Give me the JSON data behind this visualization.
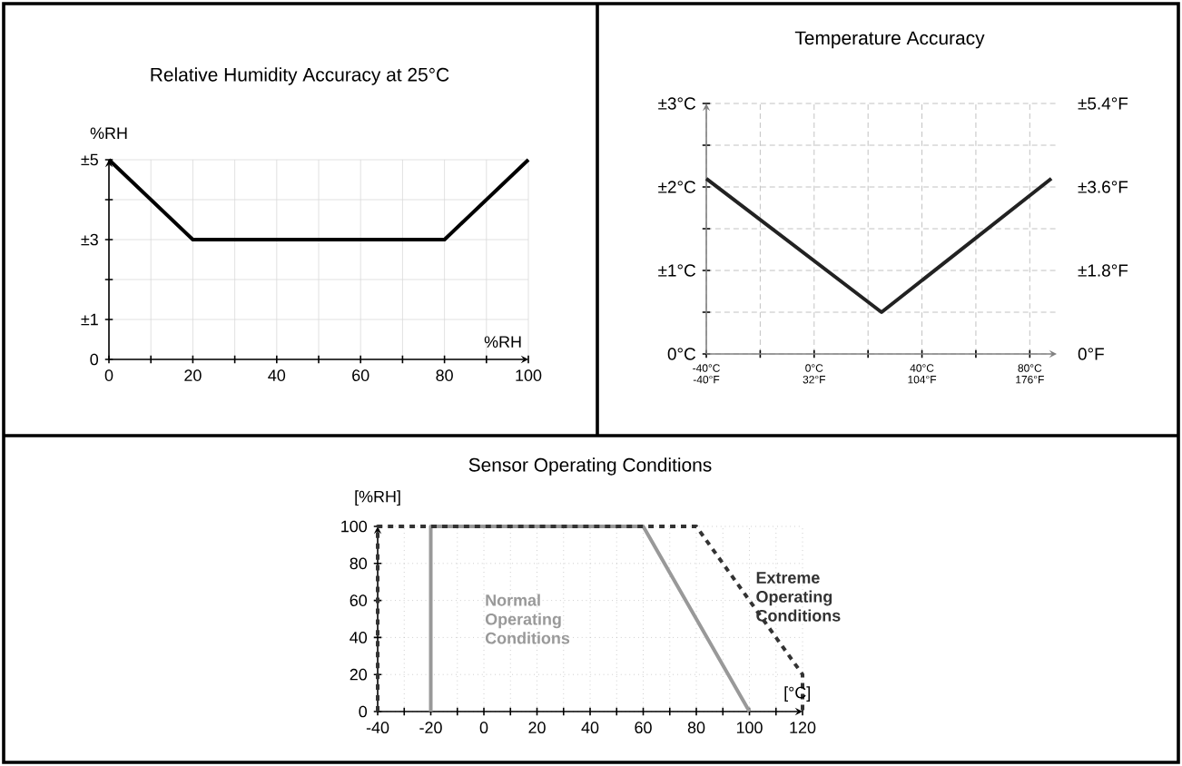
{
  "chart_data": [
    {
      "type": "line",
      "title": "Relative Humidity Accuracy at 25°C",
      "xlabel": "%RH",
      "ylabel": "%RH",
      "x": [
        0,
        20,
        80,
        100
      ],
      "series": [
        {
          "color": "#000000",
          "values": [
            5,
            3,
            3,
            5
          ]
        }
      ],
      "xlim": [
        0,
        100
      ],
      "ylim": [
        0,
        5
      ],
      "xticks": [
        0,
        {
          "value": 10,
          "label": null
        },
        20,
        {
          "value": 30,
          "label": null
        },
        40,
        {
          "value": 50,
          "label": null
        },
        60,
        {
          "value": 70,
          "label": null
        },
        80,
        {
          "value": 90,
          "label": null
        },
        100
      ],
      "yticks": [
        0,
        {
          "value": 1,
          "label": "±1"
        },
        {
          "value": 2,
          "label": null
        },
        {
          "value": 3,
          "label": "±3"
        },
        {
          "value": 4,
          "label": null
        },
        {
          "value": 5,
          "label": "±5"
        }
      ],
      "grid": true
    },
    {
      "type": "line",
      "title": "Temperature Accuracy",
      "x": [
        -40,
        25,
        88
      ],
      "series": [
        {
          "color": "#222222",
          "values": [
            2.1,
            0.5,
            2.1
          ]
        }
      ],
      "xlim": [
        -40,
        90
      ],
      "ylim": [
        0,
        3
      ],
      "xticks": [
        {
          "value": -40,
          "label": "-40°C"
        },
        {
          "value": -20,
          "label": null
        },
        {
          "value": 0,
          "label": "0°C"
        },
        {
          "value": 20,
          "label": null
        },
        {
          "value": 40,
          "label": "40°C"
        },
        {
          "value": 60,
          "label": null
        },
        {
          "value": 80,
          "label": "80°C"
        }
      ],
      "x2lim": [
        -40,
        194
      ],
      "x2ticks": [
        {
          "value": -40,
          "label": "-40°F"
        },
        {
          "value": 32,
          "label": "32°F"
        },
        {
          "value": 104,
          "label": "104°F"
        },
        {
          "value": 176,
          "label": "176°F"
        }
      ],
      "yticks": [
        {
          "value": 0,
          "label": "0°C"
        },
        {
          "value": 0.5,
          "label": null
        },
        {
          "value": 1,
          "label": "±1°C"
        },
        {
          "value": 1.5,
          "label": null
        },
        {
          "value": 2,
          "label": "±2°C"
        },
        {
          "value": 2.5,
          "label": null
        },
        {
          "value": 3,
          "label": "±3°C"
        }
      ],
      "y2lim": [
        0,
        5.4
      ],
      "y2ticks": [
        {
          "value": 0,
          "label": "0°F"
        },
        {
          "value": 1.8,
          "label": "±1.8°F"
        },
        {
          "value": 3.6,
          "label": "±3.6°F"
        },
        {
          "value": 5.4,
          "label": "±5.4°F"
        }
      ],
      "grid": true
    },
    {
      "type": "line",
      "title": "Sensor Operating Conditions",
      "xlabel": "[°C]",
      "ylabel": "[%RH]",
      "series": [
        {
          "name": "Normal Operating Conditions",
          "color": "#999999",
          "line_style": "solid",
          "x": [
            -20,
            -20,
            60,
            100
          ],
          "values": [
            0,
            100,
            100,
            0
          ]
        },
        {
          "name": "Extreme Operating Conditions",
          "color": "#333333",
          "line_style": "dashed",
          "x": [
            -40,
            -40,
            80,
            120,
            120
          ],
          "values": [
            0,
            100,
            100,
            20,
            0
          ]
        }
      ],
      "xlim": [
        -40,
        120
      ],
      "ylim": [
        0,
        100
      ],
      "xticks": [
        -40,
        {
          "value": -30,
          "label": null
        },
        -20,
        {
          "value": -10,
          "label": null
        },
        0,
        {
          "value": 10,
          "label": null
        },
        20,
        {
          "value": 30,
          "label": null
        },
        40,
        {
          "value": 50,
          "label": null
        },
        60,
        {
          "value": 70,
          "label": null
        },
        80,
        {
          "value": 90,
          "label": null
        },
        100,
        {
          "value": 110,
          "label": null
        },
        120
      ],
      "yticks": [
        0,
        20,
        40,
        60,
        80,
        100
      ],
      "grid": true
    }
  ]
}
